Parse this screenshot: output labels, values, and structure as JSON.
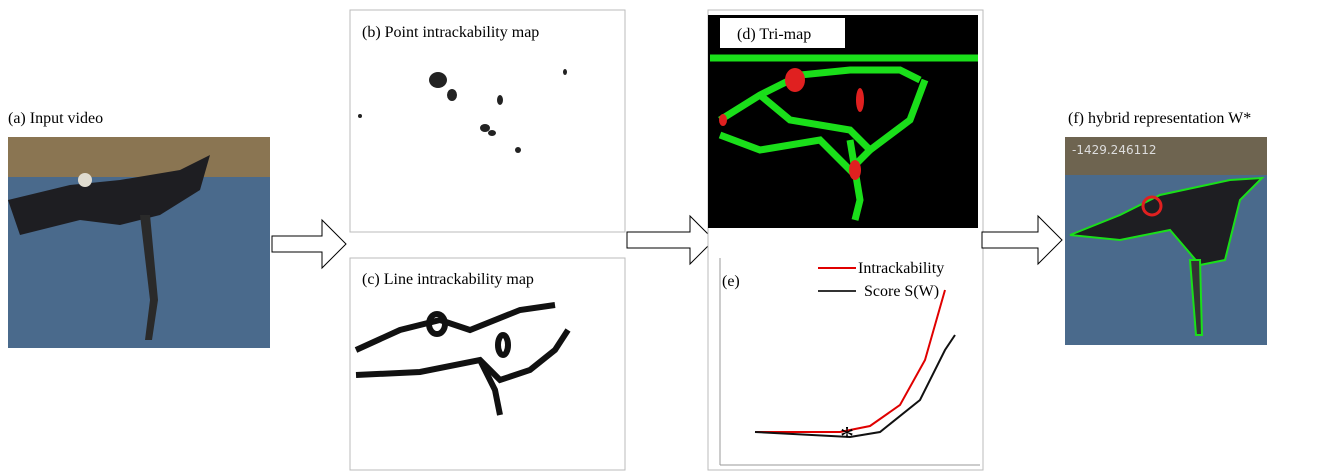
{
  "panels": {
    "a": {
      "label": "(a) Input video"
    },
    "b": {
      "label": "(b) Point intrackability map"
    },
    "c": {
      "label": "(c) Line intrackability map"
    },
    "d": {
      "label": "(d) Tri-map"
    },
    "e": {
      "label": "(e)",
      "legend": [
        "Intrackability",
        "Score S(W)"
      ]
    },
    "f": {
      "label": "(f) hybrid representation W*",
      "overlay_text": "-1429.246112"
    }
  }
}
